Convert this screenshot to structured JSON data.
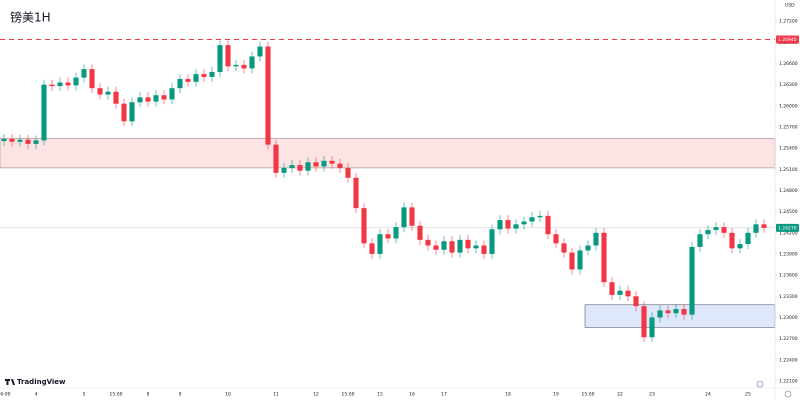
{
  "chart_data": {
    "type": "candlestick",
    "title": "镑美1H",
    "currency": "USD",
    "brand": "TradingView",
    "up_color": "#089981",
    "down_color": "#f23645",
    "grid": false,
    "ylim": [
      1.22,
      1.275
    ],
    "yticks": [
      {
        "value": 1.221,
        "label": "1.22100"
      },
      {
        "value": 1.224,
        "label": "1.22400"
      },
      {
        "value": 1.227,
        "label": "1.22700"
      },
      {
        "value": 1.23,
        "label": "1.23000"
      },
      {
        "value": 1.233,
        "label": "1.23300"
      },
      {
        "value": 1.236,
        "label": "1.23600"
      },
      {
        "value": 1.239,
        "label": "1.23900"
      },
      {
        "value": 1.242,
        "label": "1.24200"
      },
      {
        "value": 1.245,
        "label": "1.24500"
      },
      {
        "value": 1.248,
        "label": "1.24800"
      },
      {
        "value": 1.251,
        "label": "1.25100"
      },
      {
        "value": 1.254,
        "label": "1.25400"
      },
      {
        "value": 1.257,
        "label": "1.25700"
      },
      {
        "value": 1.26,
        "label": "1.26000"
      },
      {
        "value": 1.263,
        "label": "1.26300"
      },
      {
        "value": 1.266,
        "label": "1.26600"
      },
      {
        "value": 1.269,
        "label": "1.26900"
      },
      {
        "value": 1.272,
        "label": "1.27200"
      }
    ],
    "categories": [
      "06:00",
      null,
      null,
      null,
      "4",
      null,
      null,
      null,
      null,
      null,
      "5",
      null,
      null,
      null,
      "15:00",
      null,
      null,
      null,
      "8",
      null,
      null,
      null,
      "9",
      null,
      null,
      null,
      null,
      null,
      "10",
      null,
      null,
      null,
      null,
      null,
      "11",
      null,
      null,
      null,
      null,
      "12",
      null,
      null,
      null,
      "15:00",
      null,
      null,
      null,
      "15",
      null,
      null,
      null,
      "16",
      null,
      null,
      null,
      "17",
      null,
      null,
      null,
      null,
      null,
      null,
      null,
      "18",
      null,
      null,
      null,
      null,
      null,
      "19",
      null,
      null,
      null,
      "15:00",
      null,
      null,
      null,
      "22",
      null,
      null,
      null,
      "23",
      null,
      null,
      null,
      null,
      null,
      null,
      "24",
      null,
      null,
      null,
      null,
      "25",
      null,
      null
    ],
    "candles": [
      [
        1.255,
        1.256,
        1.2543,
        1.2553
      ],
      [
        1.2553,
        1.256,
        1.2542,
        1.2549
      ],
      [
        1.2549,
        1.2559,
        1.2542,
        1.2552
      ],
      [
        1.2552,
        1.2559,
        1.2539,
        1.2546
      ],
      [
        1.2546,
        1.2558,
        1.2539,
        1.2551
      ],
      [
        1.2551,
        1.2637,
        1.2544,
        1.263
      ],
      [
        1.263,
        1.2637,
        1.2621,
        1.2628
      ],
      [
        1.2628,
        1.264,
        1.2621,
        1.2633
      ],
      [
        1.2633,
        1.264,
        1.2622,
        1.2629
      ],
      [
        1.2629,
        1.2647,
        1.2622,
        1.264
      ],
      [
        1.264,
        1.2659,
        1.2633,
        1.2652
      ],
      [
        1.2652,
        1.2659,
        1.2618,
        1.2625
      ],
      [
        1.2625,
        1.2632,
        1.2609,
        1.2616
      ],
      [
        1.2616,
        1.2627,
        1.2609,
        1.262
      ],
      [
        1.262,
        1.2627,
        1.2596,
        1.2603
      ],
      [
        1.2603,
        1.261,
        1.2571,
        1.2578
      ],
      [
        1.2578,
        1.2612,
        1.2571,
        1.2605
      ],
      [
        1.2605,
        1.2619,
        1.2598,
        1.2612
      ],
      [
        1.2612,
        1.2619,
        1.2599,
        1.2606
      ],
      [
        1.2606,
        1.2622,
        1.2599,
        1.2615
      ],
      [
        1.2615,
        1.2622,
        1.2602,
        1.2609
      ],
      [
        1.2609,
        1.2632,
        1.2602,
        1.2625
      ],
      [
        1.2625,
        1.2645,
        1.2618,
        1.2638
      ],
      [
        1.2638,
        1.2645,
        1.2627,
        1.2634
      ],
      [
        1.2634,
        1.2652,
        1.2627,
        1.2645
      ],
      [
        1.2645,
        1.2652,
        1.2634,
        1.2641
      ],
      [
        1.2641,
        1.2655,
        1.2634,
        1.2648
      ],
      [
        1.2648,
        1.2693,
        1.2641,
        1.2686
      ],
      [
        1.2686,
        1.2693,
        1.2649,
        1.2656
      ],
      [
        1.2656,
        1.2665,
        1.2649,
        1.2658
      ],
      [
        1.2658,
        1.2665,
        1.2646,
        1.2653
      ],
      [
        1.2653,
        1.2677,
        1.2646,
        1.267
      ],
      [
        1.267,
        1.2691,
        1.2663,
        1.2684
      ],
      [
        1.2684,
        1.2691,
        1.2538,
        1.2545
      ],
      [
        1.2545,
        1.2552,
        1.2498,
        1.2505
      ],
      [
        1.2505,
        1.2519,
        1.2498,
        1.2512
      ],
      [
        1.2512,
        1.2523,
        1.2505,
        1.2516
      ],
      [
        1.2516,
        1.2523,
        1.2501,
        1.2508
      ],
      [
        1.2508,
        1.2527,
        1.2501,
        1.252
      ],
      [
        1.252,
        1.2527,
        1.2507,
        1.2514
      ],
      [
        1.2514,
        1.2529,
        1.2507,
        1.2522
      ],
      [
        1.2522,
        1.2529,
        1.2511,
        1.2518
      ],
      [
        1.2518,
        1.2525,
        1.2505,
        1.2512
      ],
      [
        1.2512,
        1.2519,
        1.2491,
        1.2498
      ],
      [
        1.2498,
        1.2505,
        1.2448,
        1.2455
      ],
      [
        1.2455,
        1.2462,
        1.2398,
        1.2405
      ],
      [
        1.2405,
        1.2412,
        1.2383,
        1.239
      ],
      [
        1.239,
        1.2425,
        1.2383,
        1.2418
      ],
      [
        1.2418,
        1.2425,
        1.2405,
        1.2412
      ],
      [
        1.2412,
        1.2435,
        1.2405,
        1.2428
      ],
      [
        1.2428,
        1.2463,
        1.2421,
        1.2456
      ],
      [
        1.2456,
        1.2463,
        1.2423,
        1.243
      ],
      [
        1.243,
        1.2437,
        1.2403,
        1.241
      ],
      [
        1.241,
        1.2417,
        1.2395,
        1.2402
      ],
      [
        1.2402,
        1.2409,
        1.2389,
        1.2396
      ],
      [
        1.2396,
        1.2415,
        1.2389,
        1.2408
      ],
      [
        1.2408,
        1.2415,
        1.2385,
        1.2392
      ],
      [
        1.2392,
        1.2417,
        1.2385,
        1.241
      ],
      [
        1.241,
        1.2417,
        1.2391,
        1.2398
      ],
      [
        1.2398,
        1.2409,
        1.2391,
        1.2402
      ],
      [
        1.2402,
        1.2409,
        1.2383,
        1.239
      ],
      [
        1.239,
        1.2432,
        1.2383,
        1.2425
      ],
      [
        1.2425,
        1.2445,
        1.2418,
        1.2438
      ],
      [
        1.2438,
        1.2445,
        1.2419,
        1.2426
      ],
      [
        1.2426,
        1.2439,
        1.2419,
        1.2432
      ],
      [
        1.2432,
        1.2443,
        1.2425,
        1.2436
      ],
      [
        1.2436,
        1.2449,
        1.2429,
        1.2442
      ],
      [
        1.2442,
        1.2451,
        1.2435,
        1.2444
      ],
      [
        1.2444,
        1.2451,
        1.2411,
        1.2418
      ],
      [
        1.2418,
        1.2425,
        1.2398,
        1.2405
      ],
      [
        1.2405,
        1.2412,
        1.2385,
        1.2392
      ],
      [
        1.2392,
        1.2399,
        1.2361,
        1.2368
      ],
      [
        1.2368,
        1.2402,
        1.2361,
        1.2395
      ],
      [
        1.2395,
        1.2409,
        1.2388,
        1.2402
      ],
      [
        1.2402,
        1.2427,
        1.2395,
        1.242
      ],
      [
        1.242,
        1.2427,
        1.2343,
        1.235
      ],
      [
        1.235,
        1.2357,
        1.2325,
        1.2332
      ],
      [
        1.2332,
        1.2345,
        1.2325,
        1.2338
      ],
      [
        1.2338,
        1.2345,
        1.2323,
        1.233
      ],
      [
        1.233,
        1.2337,
        1.2309,
        1.2316
      ],
      [
        1.2316,
        1.2323,
        1.2265,
        1.2272
      ],
      [
        1.2272,
        1.2307,
        1.2265,
        1.23
      ],
      [
        1.23,
        1.2317,
        1.2293,
        1.231
      ],
      [
        1.231,
        1.2317,
        1.2299,
        1.2306
      ],
      [
        1.2306,
        1.2319,
        1.2299,
        1.2312
      ],
      [
        1.2312,
        1.2319,
        1.2297,
        1.2304
      ],
      [
        1.2304,
        1.2407,
        1.2297,
        1.24
      ],
      [
        1.24,
        1.2425,
        1.2393,
        1.2418
      ],
      [
        1.2418,
        1.2431,
        1.2411,
        1.2424
      ],
      [
        1.2424,
        1.2435,
        1.2417,
        1.2428
      ],
      [
        1.2428,
        1.2435,
        1.2413,
        1.242
      ],
      [
        1.242,
        1.2427,
        1.2391,
        1.2398
      ],
      [
        1.2398,
        1.2411,
        1.2391,
        1.2404
      ],
      [
        1.2404,
        1.2427,
        1.2397,
        1.242
      ],
      [
        1.242,
        1.2439,
        1.2413,
        1.2432
      ],
      [
        1.2432,
        1.2439,
        1.242,
        1.2427
      ]
    ],
    "zones": [
      {
        "top": 1.2554,
        "bottom": 1.2512,
        "color": "#fde4e4",
        "border": "#9a8a8a"
      },
      {
        "top": 1.2318,
        "bottom": 1.2286,
        "color": "#dfe7fb",
        "border": "#5a6172"
      }
    ],
    "levels": [
      {
        "value": 1.2694,
        "label": "1.26940",
        "color": "#f23645",
        "dashed": true
      },
      {
        "value": 1.2427,
        "label": "1.24270",
        "color": "#089981",
        "dashed": false
      }
    ]
  }
}
